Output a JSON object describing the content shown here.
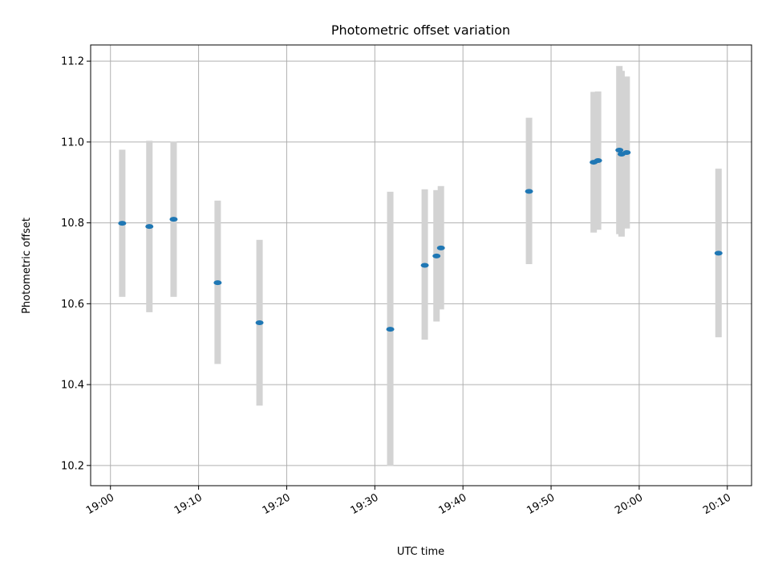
{
  "chart_data": {
    "type": "scatter",
    "title": "Photometric offset variation",
    "xlabel": "UTC time",
    "ylabel": "Photometric offset",
    "xlim": [
      "18:57:45",
      "20:12:45"
    ],
    "ylim": [
      10.15,
      11.24
    ],
    "xticks": [
      "19:00",
      "19:10",
      "19:20",
      "19:30",
      "19:40",
      "19:50",
      "20:00",
      "20:10"
    ],
    "yticks": [
      "10.2",
      "10.4",
      "10.6",
      "10.8",
      "11.0",
      "11.2"
    ],
    "grid": true,
    "legend": "none",
    "colors": {
      "point": "#1f77b4",
      "error_bar": "#d3d3d3",
      "grid": "#b0b0b0"
    },
    "points": [
      {
        "time": "19:01:20",
        "y": 10.799,
        "ylow": 10.617,
        "yhigh": 10.981
      },
      {
        "time": "19:04:25",
        "y": 10.791,
        "ylow": 10.579,
        "yhigh": 11.003
      },
      {
        "time": "19:07:10",
        "y": 10.809,
        "ylow": 10.617,
        "yhigh": 11.001
      },
      {
        "time": "19:12:10",
        "y": 10.652,
        "ylow": 10.451,
        "yhigh": 10.855
      },
      {
        "time": "19:16:55",
        "y": 10.553,
        "ylow": 10.348,
        "yhigh": 10.758
      },
      {
        "time": "19:31:45",
        "y": 10.537,
        "ylow": 10.199,
        "yhigh": 10.877
      },
      {
        "time": "19:35:40",
        "y": 10.695,
        "ylow": 10.511,
        "yhigh": 10.883
      },
      {
        "time": "19:37:00",
        "y": 10.718,
        "ylow": 10.556,
        "yhigh": 10.881
      },
      {
        "time": "19:37:30",
        "y": 10.738,
        "ylow": 10.586,
        "yhigh": 10.891
      },
      {
        "time": "19:47:30",
        "y": 10.878,
        "ylow": 10.698,
        "yhigh": 11.06
      },
      {
        "time": "19:54:50",
        "y": 10.95,
        "ylow": 10.776,
        "yhigh": 11.124
      },
      {
        "time": "19:55:20",
        "y": 10.954,
        "ylow": 10.783,
        "yhigh": 11.125
      },
      {
        "time": "19:57:45",
        "y": 10.98,
        "ylow": 10.772,
        "yhigh": 11.188
      },
      {
        "time": "19:58:00",
        "y": 10.97,
        "ylow": 10.766,
        "yhigh": 11.176
      },
      {
        "time": "19:58:35",
        "y": 10.974,
        "ylow": 10.786,
        "yhigh": 11.162
      },
      {
        "time": "20:09:00",
        "y": 10.725,
        "ylow": 10.517,
        "yhigh": 10.934
      }
    ]
  }
}
